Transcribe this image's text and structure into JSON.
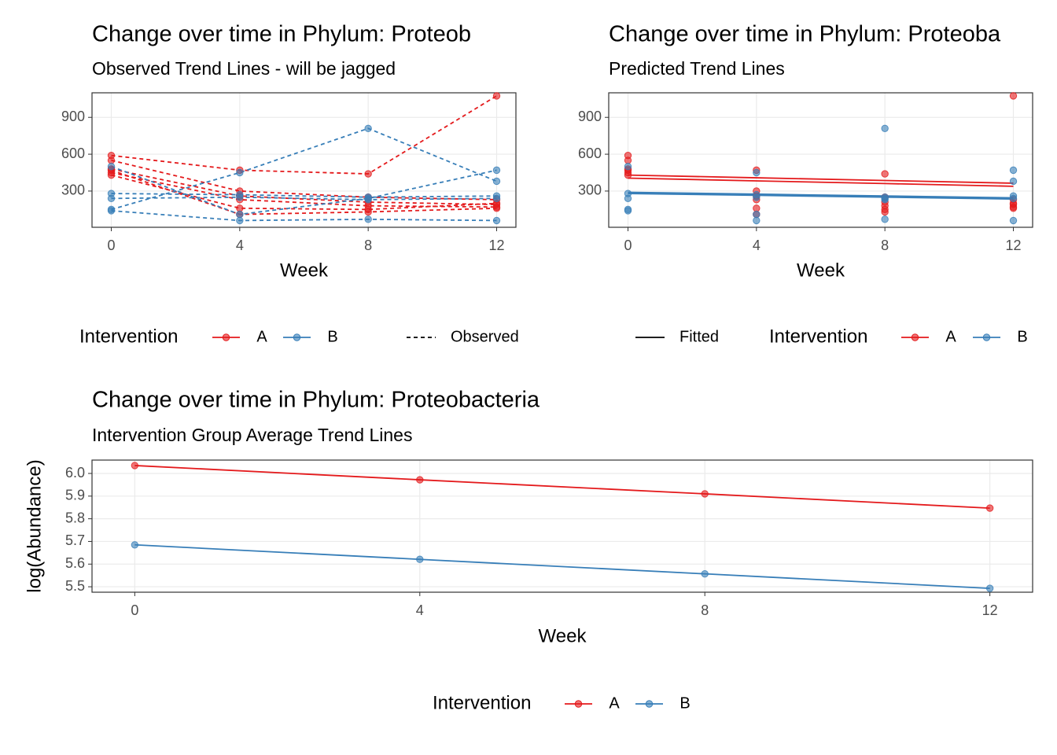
{
  "chart_data": [
    {
      "type": "line",
      "title": "Change over time in Phylum: Proteob",
      "subtitle": "Observed Trend Lines - will be jagged",
      "x_label": "Week",
      "x": [
        0,
        4,
        8,
        12
      ],
      "xlim": [
        -0.6,
        12.6
      ],
      "ylim": [
        5,
        1100
      ],
      "xticks": [
        0,
        4,
        8,
        12
      ],
      "yticks": [
        300,
        600,
        900
      ],
      "grid": true,
      "legend_position": "bottom",
      "legend_title": "Intervention",
      "line_style": "dashed",
      "line_style_label": "Observed",
      "series": [
        {
          "name": "A",
          "color": "#E41A1C",
          "observed": [
            [
              590,
              470,
              440,
              1075
            ],
            [
              550,
              300,
              250,
              230
            ],
            [
              480,
              260,
              210,
              190
            ],
            [
              450,
              230,
              180,
              170
            ],
            [
              430,
              160,
              150,
              200
            ],
            [
              470,
              110,
              130,
              160
            ]
          ]
        },
        {
          "name": "B",
          "color": "#377EB8",
          "observed": [
            [
              150,
              450,
              810,
              380
            ],
            [
              500,
              110,
              240,
              470
            ],
            [
              280,
              270,
              250,
              260
            ],
            [
              140,
              60,
              70,
              60
            ],
            [
              240,
              250,
              230,
              240
            ]
          ]
        }
      ]
    },
    {
      "type": "line",
      "title": "Change over time in Phylum: Proteoba",
      "subtitle": "Predicted Trend Lines",
      "x_label": "Week",
      "x": [
        0,
        4,
        8,
        12
      ],
      "xlim": [
        -0.6,
        12.6
      ],
      "ylim": [
        5,
        1100
      ],
      "xticks": [
        0,
        4,
        8,
        12
      ],
      "yticks": [
        300,
        600,
        900
      ],
      "grid": true,
      "legend_position": "bottom",
      "legend_title": "Intervention",
      "line_style": "solid",
      "line_style_label": "Fitted",
      "series": [
        {
          "name": "A",
          "color": "#E41A1C",
          "observed": [
            [
              590,
              470,
              440,
              1075
            ],
            [
              550,
              300,
              250,
              230
            ],
            [
              480,
              260,
              210,
              190
            ],
            [
              450,
              230,
              180,
              170
            ],
            [
              430,
              160,
              150,
              200
            ],
            [
              470,
              110,
              130,
              160
            ]
          ],
          "fitted": [
            [
              430,
              408,
              386,
              364
            ],
            [
              405,
              383,
              361,
              339
            ]
          ]
        },
        {
          "name": "B",
          "color": "#377EB8",
          "observed": [
            [
              150,
              450,
              810,
              380
            ],
            [
              500,
              110,
              240,
              470
            ],
            [
              280,
              270,
              250,
              260
            ],
            [
              140,
              60,
              70,
              60
            ],
            [
              240,
              250,
              230,
              240
            ]
          ],
          "fitted": [
            [
              290,
              275,
              260,
              245
            ],
            [
              280,
              265,
              250,
              235
            ]
          ]
        }
      ]
    },
    {
      "type": "line",
      "title": "Change over time in Phylum: Proteobacteria",
      "subtitle": "Intervention Group Average Trend Lines",
      "x_label": "Week",
      "y_label": "log(Abundance)",
      "x": [
        0,
        4,
        8,
        12
      ],
      "xlim": [
        -0.6,
        12.6
      ],
      "ylim": [
        5.476,
        6.059
      ],
      "xticks": [
        0,
        4,
        8,
        12
      ],
      "yticks": [
        5.5,
        5.6,
        5.7,
        5.8,
        5.9,
        {
          "value": 6,
          "label": "6.0"
        }
      ],
      "grid": true,
      "legend_position": "bottom",
      "legend_title": "Intervention",
      "series": [
        {
          "name": "A",
          "color": "#E41A1C",
          "values": [
            6.035,
            5.972,
            5.91,
            5.847
          ]
        },
        {
          "name": "B",
          "color": "#377EB8",
          "values": [
            5.685,
            5.621,
            5.557,
            5.493
          ]
        }
      ]
    }
  ]
}
